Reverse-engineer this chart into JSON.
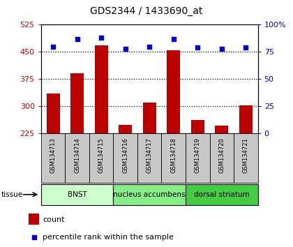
{
  "title": "GDS2344 / 1433690_at",
  "samples": [
    "GSM134713",
    "GSM134714",
    "GSM134715",
    "GSM134716",
    "GSM134717",
    "GSM134718",
    "GSM134719",
    "GSM134720",
    "GSM134721"
  ],
  "counts": [
    335,
    390,
    468,
    248,
    310,
    455,
    262,
    247,
    303
  ],
  "percentiles": [
    80,
    87,
    88,
    78,
    80,
    87,
    79,
    78,
    79
  ],
  "ylim_left": [
    225,
    525
  ],
  "yticks_left": [
    225,
    300,
    375,
    450,
    525
  ],
  "ylim_right": [
    0,
    100
  ],
  "yticks_right": [
    0,
    25,
    50,
    75,
    100
  ],
  "bar_color": "#BB0000",
  "dot_color": "#0000CC",
  "groups": [
    {
      "label": "BNST",
      "start": 0,
      "end": 3,
      "color": "#CCFFCC"
    },
    {
      "label": "nucleus accumbens",
      "start": 3,
      "end": 6,
      "color": "#88EE88"
    },
    {
      "label": "dorsal striatum",
      "start": 6,
      "end": 9,
      "color": "#44CC44"
    }
  ],
  "tissue_label": "tissue",
  "legend_count_label": "count",
  "legend_pct_label": "percentile rank within the sample",
  "left_tick_color": "#CC0000",
  "right_tick_color": "#0000CC",
  "bar_width": 0.55,
  "sample_box_color": "#C8C8C8",
  "sample_box_edge": "#888888"
}
